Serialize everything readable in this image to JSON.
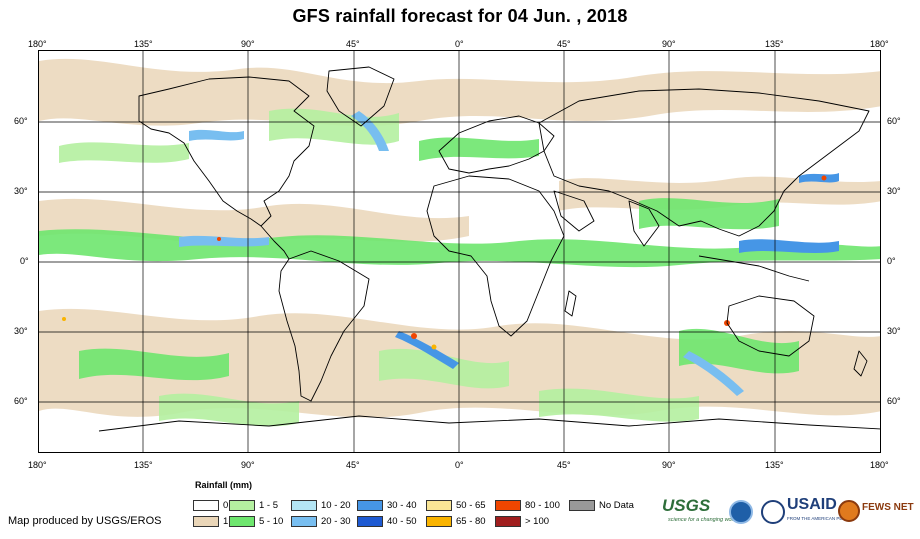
{
  "title": "GFS rainfall forecast for 04 Jun. , 2018",
  "axes": {
    "top_lon": [
      "180°",
      "135°",
      "90°",
      "45°",
      "0°",
      "45°",
      "90°",
      "135°",
      "180°"
    ],
    "bottom_lon": [
      "180°",
      "135°",
      "90°",
      "45°",
      "0°",
      "45°",
      "90°",
      "135°",
      "180°"
    ],
    "left_lat": [
      "60°",
      "30°",
      "0°",
      "30°",
      "60°"
    ],
    "right_lat": [
      "60°",
      "30°",
      "0°",
      "30°",
      "60°"
    ]
  },
  "legend": {
    "title": "Rainfall (mm)",
    "items": [
      {
        "label": "0",
        "color": "#ffffff"
      },
      {
        "label": "1",
        "color": "#ead6b8"
      },
      {
        "label": "1 - 5",
        "color": "#b4f0a0"
      },
      {
        "label": "5 - 10",
        "color": "#6ee66e"
      },
      {
        "label": "10 - 20",
        "color": "#b4e6f5"
      },
      {
        "label": "20 - 30",
        "color": "#78bef0"
      },
      {
        "label": "30 - 40",
        "color": "#4696e6"
      },
      {
        "label": "40 - 50",
        "color": "#1e5ad2"
      },
      {
        "label": "50 - 65",
        "color": "#fae696"
      },
      {
        "label": "65 - 80",
        "color": "#fab400"
      },
      {
        "label": "80 - 100",
        "color": "#f04600"
      },
      {
        "label": "> 100",
        "color": "#a01e1e"
      },
      {
        "label": "No Data",
        "color": "#999999"
      }
    ]
  },
  "credit": "Map produced by USGS/EROS",
  "logos": {
    "usgs": "USGS",
    "usgs_tagline": "science for a changing world",
    "usaid": "USAID",
    "usaid_tagline": "FROM THE AMERICAN PEOPLE",
    "fewsnet": "FEWS NET"
  },
  "colors": {
    "frame": "#000000",
    "grid": "#000000",
    "coast": "#000000"
  }
}
